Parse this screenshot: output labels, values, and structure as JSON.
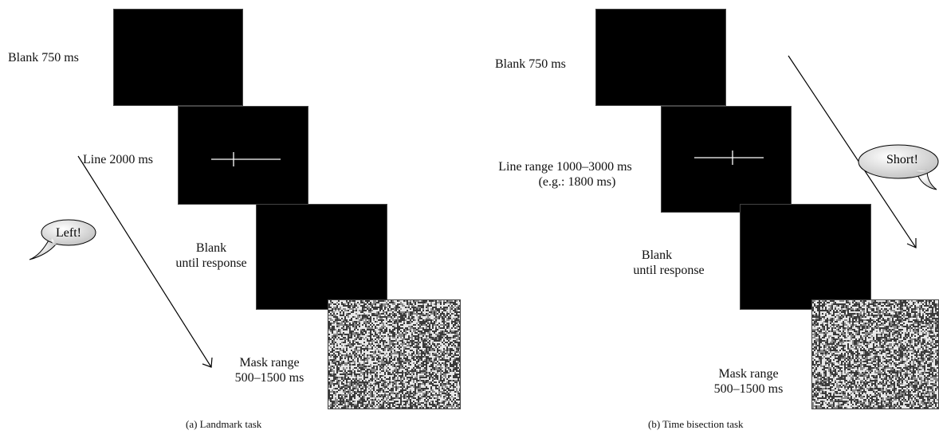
{
  "panel_a": {
    "caption": "(a)  Landmark task",
    "labels": {
      "blank": "Blank 750 ms",
      "line": "Line 2000 ms",
      "blank_response_1": "Blank",
      "blank_response_2": "until response",
      "mask_1": "Mask range",
      "mask_2": "500–1500 ms"
    },
    "bubble": "Left!"
  },
  "panel_b": {
    "caption": "(b)  Time bisection task",
    "labels": {
      "blank": "Blank 750 ms",
      "line_1": "Line range 1000–3000 ms",
      "line_2": "(e.g.: 1800 ms)",
      "blank_response_1": "Blank",
      "blank_response_2": "until response",
      "mask_1": "Mask range",
      "mask_2": "500–1500 ms"
    },
    "bubble": "Short!"
  },
  "colors": {
    "screen": "#000000",
    "stimulus_line": "#ffffff",
    "bubble_fill": "#e6e6e6"
  }
}
